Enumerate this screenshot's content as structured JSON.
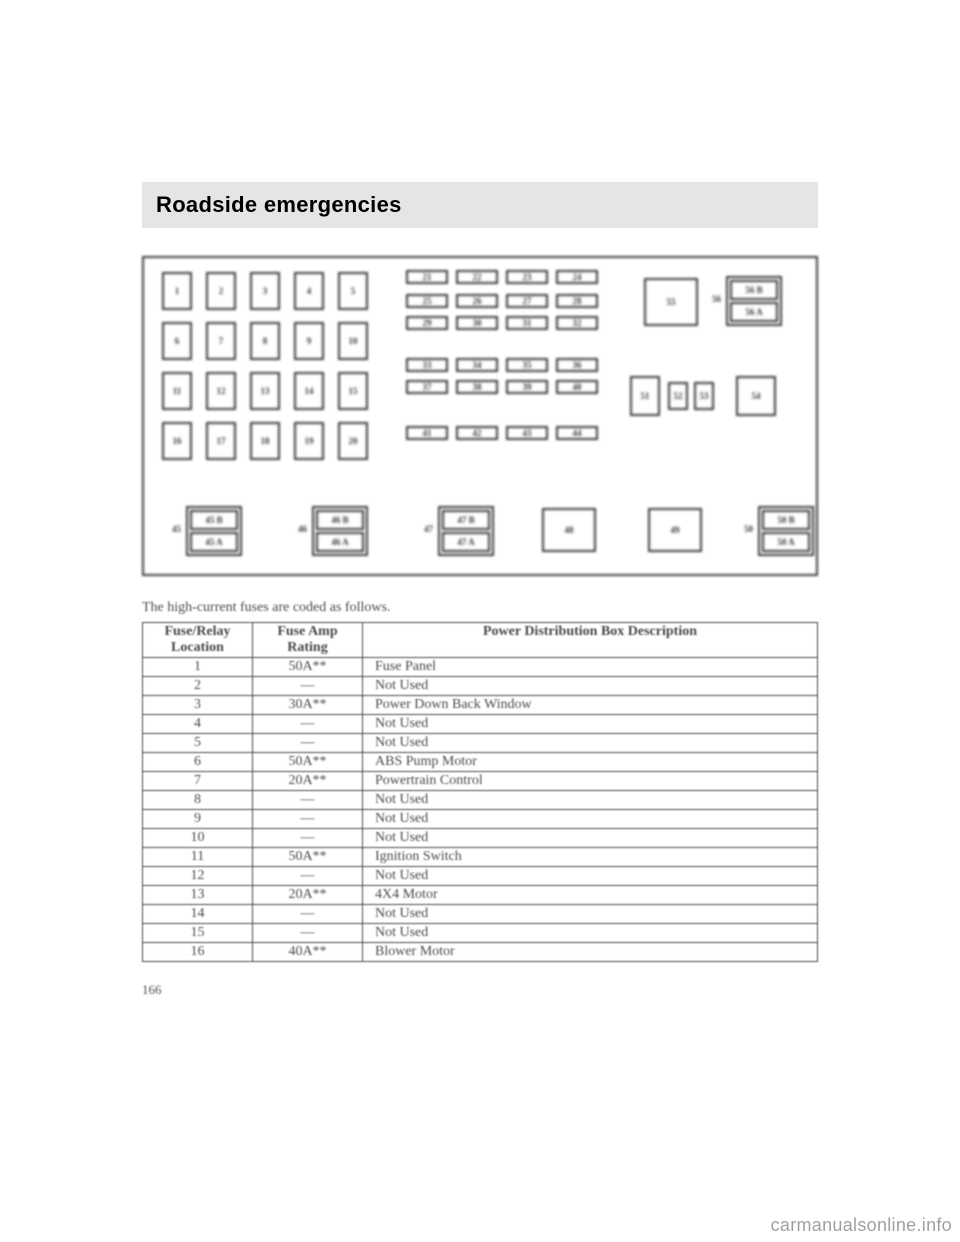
{
  "header": {
    "title": "Roadside emergencies"
  },
  "diagram": {
    "main_fuses": [
      "1",
      "2",
      "3",
      "4",
      "5",
      "6",
      "7",
      "8",
      "9",
      "10",
      "11",
      "12",
      "13",
      "14",
      "15",
      "16",
      "17",
      "18",
      "19",
      "20"
    ],
    "small_fuses_rows": [
      [
        "21",
        "22",
        "23",
        "24"
      ],
      [
        "25",
        "26",
        "27",
        "28"
      ],
      [
        "29",
        "30",
        "31",
        "32"
      ],
      [
        "33",
        "34",
        "35",
        "36"
      ],
      [
        "37",
        "38",
        "39",
        "40"
      ],
      [
        "41",
        "42",
        "43",
        "44"
      ]
    ],
    "right_area": {
      "big_55": "55",
      "box56_t": "56 B",
      "box56_b": "56 A",
      "box51": "51",
      "tiny52": "52",
      "tiny53": "53",
      "box54": "54"
    },
    "bottom_pairs": [
      {
        "num": "45",
        "t": "45 B",
        "b": "45 A"
      },
      {
        "num": "46",
        "t": "46 B",
        "b": "46 A"
      },
      {
        "num": "47",
        "t": "47 B",
        "b": "47 A"
      }
    ],
    "bottom_big": [
      "48",
      "49"
    ],
    "bottom_50": {
      "num": "50",
      "t": "50 B",
      "b": "50 A"
    }
  },
  "caption": "The high-current fuses are coded as follows.",
  "table": {
    "headers": [
      "Fuse/Relay\nLocation",
      "Fuse Amp\nRating",
      "Power Distribution Box Description"
    ],
    "rows": [
      [
        "1",
        "50A**",
        "Fuse Panel"
      ],
      [
        "2",
        "—",
        "Not Used"
      ],
      [
        "3",
        "30A**",
        "Power Down Back Window"
      ],
      [
        "4",
        "—",
        "Not Used"
      ],
      [
        "5",
        "—",
        "Not Used"
      ],
      [
        "6",
        "50A**",
        "ABS Pump Motor"
      ],
      [
        "7",
        "20A**",
        "Powertrain Control"
      ],
      [
        "8",
        "—",
        "Not Used"
      ],
      [
        "9",
        "—",
        "Not Used"
      ],
      [
        "10",
        "—",
        "Not Used"
      ],
      [
        "11",
        "50A**",
        "Ignition Switch"
      ],
      [
        "12",
        "—",
        "Not Used"
      ],
      [
        "13",
        "20A**",
        "4X4 Motor"
      ],
      [
        "14",
        "—",
        "Not Used"
      ],
      [
        "15",
        "—",
        "Not Used"
      ],
      [
        "16",
        "40A**",
        "Blower Motor"
      ]
    ]
  },
  "page_number": "166",
  "watermark": "carmanualsonline.info"
}
